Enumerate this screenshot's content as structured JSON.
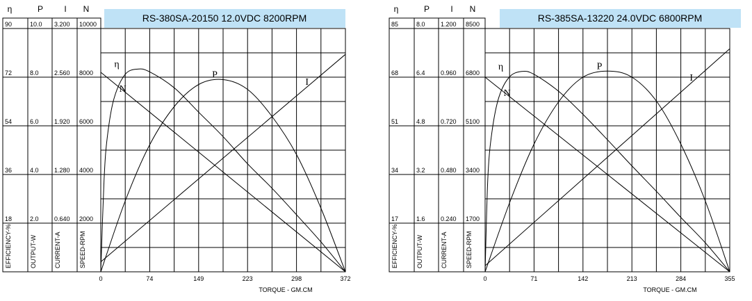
{
  "chart_data": [
    {
      "type": "line",
      "title": "RS-380SA-20150    12.0VDC   8200RPM",
      "xlabel": "TORQUE - GM.CM",
      "x_ticks": [
        "0",
        "74",
        "149",
        "223",
        "298",
        "372"
      ],
      "xlim": [
        0,
        372
      ],
      "column_headers": [
        "η",
        "P",
        "I",
        "N"
      ],
      "axis_labels": [
        "EFFICIENCY-%",
        "OUTPUT-W",
        "CURRENT-A",
        "SPEED-RPM"
      ],
      "axis_ticks": [
        [
          "18",
          "36",
          "54",
          "72",
          "90"
        ],
        [
          "2.0",
          "4.0",
          "6.0",
          "8.0",
          "10.0"
        ],
        [
          "0.640",
          "1.280",
          "1.920",
          "2.560",
          "3.200"
        ],
        [
          "2000",
          "4000",
          "6000",
          "8000",
          "10000"
        ]
      ],
      "axis_ranges": {
        "efficiency": [
          0,
          90
        ],
        "output": [
          0,
          10
        ],
        "current": [
          0,
          3.2
        ],
        "speed": [
          0,
          10000
        ]
      },
      "series": [
        {
          "name": "N",
          "axis": "speed",
          "x": [
            0,
            372
          ],
          "y": [
            8200,
            0
          ]
        },
        {
          "name": "I",
          "axis": "current",
          "x": [
            0,
            372
          ],
          "y": [
            0.13,
            2.86
          ]
        },
        {
          "name": "P",
          "axis": "output",
          "x": [
            0,
            37,
            74,
            112,
            149,
            186,
            223,
            260,
            298,
            335,
            372
          ],
          "y": [
            0,
            2.9,
            5.2,
            6.8,
            7.7,
            7.9,
            7.5,
            6.4,
            4.8,
            2.6,
            0
          ]
        },
        {
          "name": "η",
          "axis": "efficiency",
          "x": [
            0,
            5,
            10,
            20,
            37,
            56,
            74,
            112,
            149,
            186,
            223,
            260,
            298,
            335,
            372
          ],
          "y": [
            0,
            34,
            50,
            64,
            73,
            75,
            74,
            68,
            59,
            50,
            40,
            31,
            21,
            11,
            0
          ]
        }
      ]
    },
    {
      "type": "line",
      "title": "RS-385SA-13220   24.0VDC  6800RPM",
      "xlabel": "TORQUE - GM.CM",
      "x_ticks": [
        "0",
        "71",
        "142",
        "213",
        "284",
        "355"
      ],
      "xlim": [
        0,
        355
      ],
      "column_headers": [
        "η",
        "P",
        "I",
        "N"
      ],
      "axis_labels": [
        "EFFICIENCY-%",
        "OUTPUT-W",
        "CURRENT-A",
        "SPEED-RPM"
      ],
      "axis_ticks": [
        [
          "17",
          "34",
          "51",
          "68",
          "85"
        ],
        [
          "1.6",
          "3.2",
          "4.8",
          "6.4",
          "8.0"
        ],
        [
          "0.240",
          "0.480",
          "0.720",
          "0.960",
          "1.200"
        ],
        [
          "1700",
          "3400",
          "5100",
          "6800",
          "8500"
        ]
      ],
      "axis_ranges": {
        "efficiency": [
          0,
          85
        ],
        "output": [
          0,
          8
        ],
        "current": [
          0,
          1.2
        ],
        "speed": [
          0,
          8500
        ]
      },
      "series": [
        {
          "name": "N",
          "axis": "speed",
          "x": [
            0,
            355
          ],
          "y": [
            6800,
            0
          ]
        },
        {
          "name": "I",
          "axis": "current",
          "x": [
            0,
            355
          ],
          "y": [
            0.03,
            1.1
          ]
        },
        {
          "name": "P",
          "axis": "output",
          "x": [
            0,
            36,
            71,
            107,
            142,
            178,
            213,
            249,
            284,
            320,
            355
          ],
          "y": [
            0,
            2.3,
            4.2,
            5.6,
            6.4,
            6.6,
            6.4,
            5.6,
            4.2,
            2.3,
            0
          ]
        },
        {
          "name": "η",
          "axis": "efficiency",
          "x": [
            0,
            4,
            10,
            20,
            35,
            53,
            71,
            107,
            142,
            178,
            213,
            249,
            284,
            320,
            355
          ],
          "y": [
            0,
            33,
            49,
            61,
            68,
            70,
            69,
            63,
            55,
            46,
            37,
            28,
            19,
            10,
            0
          ]
        }
      ]
    }
  ]
}
